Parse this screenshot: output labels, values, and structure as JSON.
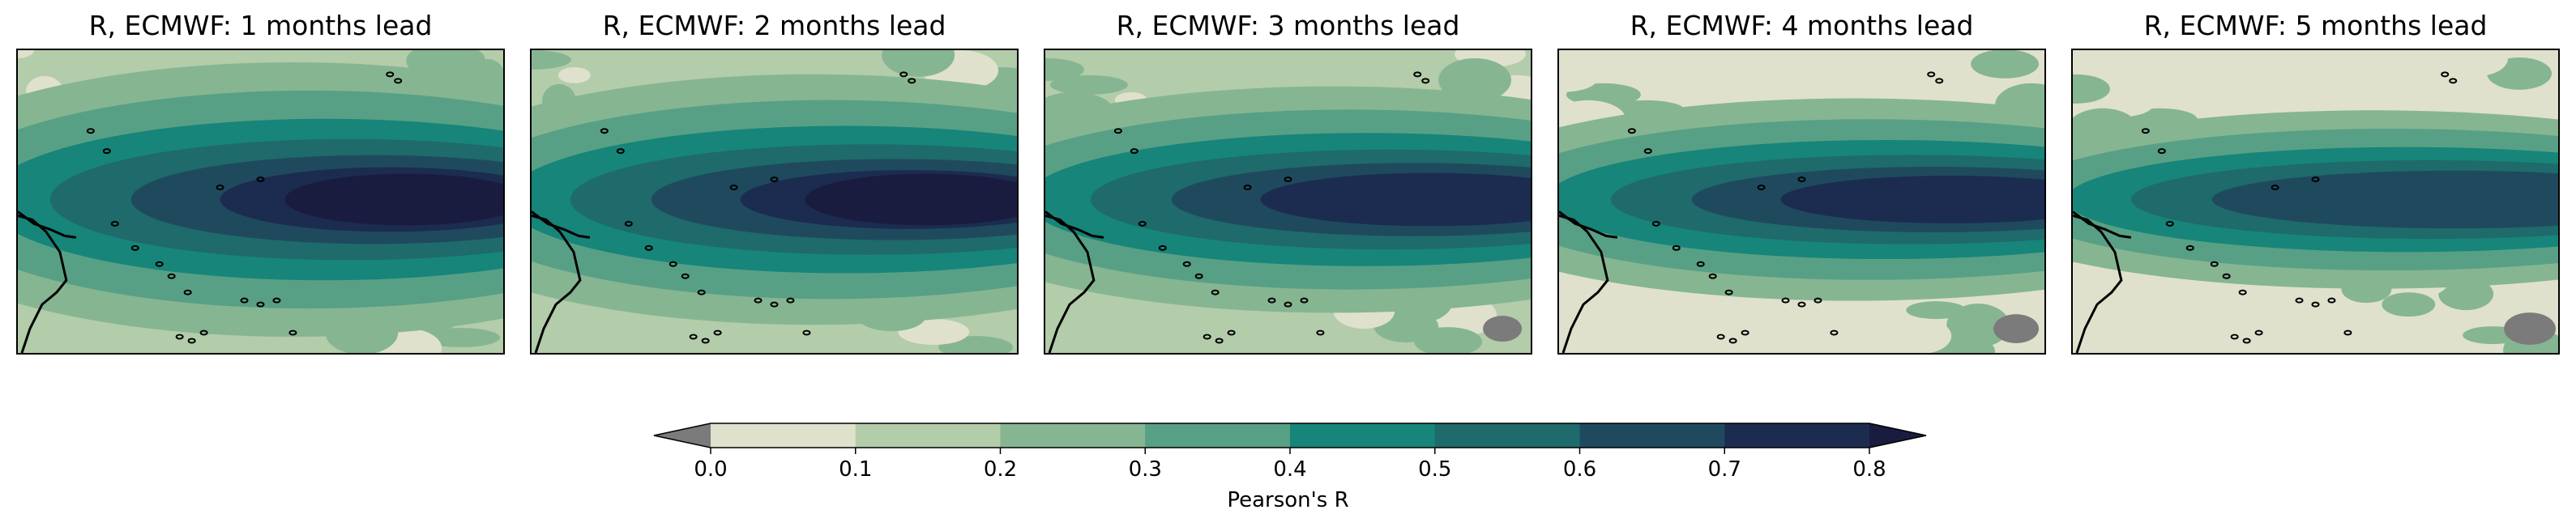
{
  "chart_data": [
    {
      "type": "heatmap",
      "title": "R, ECMWF: 1 months lead",
      "lead_months": 1
    },
    {
      "type": "heatmap",
      "title": "R, ECMWF: 2 months lead",
      "lead_months": 2
    },
    {
      "type": "heatmap",
      "title": "R, ECMWF: 3 months lead",
      "lead_months": 3
    },
    {
      "type": "heatmap",
      "title": "R, ECMWF: 4 months lead",
      "lead_months": 4
    },
    {
      "type": "heatmap",
      "title": "R, ECMWF: 5 months lead",
      "lead_months": 5
    }
  ],
  "colorbar": {
    "label": "Pearson's R",
    "ticks": [
      "0.0",
      "0.1",
      "0.2",
      "0.3",
      "0.4",
      "0.5",
      "0.6",
      "0.7",
      "0.8"
    ],
    "bounds": [
      0.0,
      0.1,
      0.2,
      0.3,
      0.4,
      0.5,
      0.6,
      0.7,
      0.8
    ],
    "colors": [
      "#dfe1cd",
      "#b3ccaa",
      "#86b592",
      "#58a085",
      "#178579",
      "#1f6a6a",
      "#1f4a5e",
      "#1c2c50"
    ],
    "under_color": "#7b7b7b",
    "over_color": "#1a1c3f",
    "extend": "both"
  },
  "coastline_color": "#000000"
}
